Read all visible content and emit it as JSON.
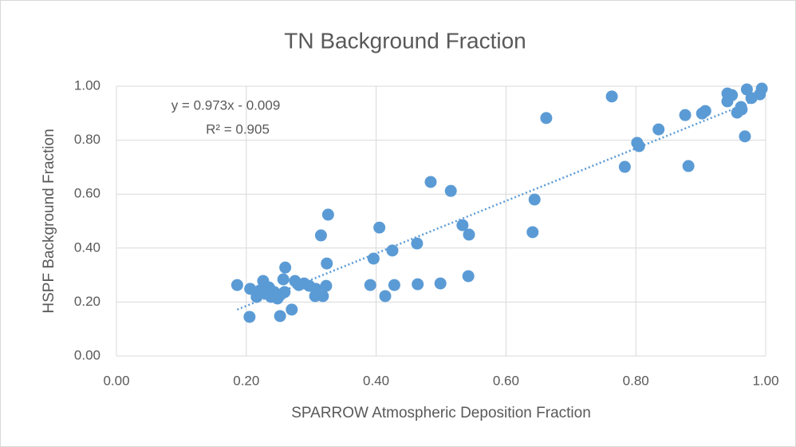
{
  "chart_data": {
    "type": "scatter",
    "title": "TN Background Fraction",
    "x_label": "SPARROW Atmospheric Deposition Fraction",
    "y_label": "HSPF Background Fraction",
    "annotations": [
      "y = 0.973x - 0.009",
      "R² = 0.905"
    ],
    "trendline": {
      "slope": 0.973,
      "intercept": -0.009,
      "style": "dotted"
    },
    "color": "#5b9bd5",
    "grid": true,
    "x": [
      0.186,
      0.205,
      0.206,
      0.216,
      0.221,
      0.226,
      0.23,
      0.235,
      0.238,
      0.243,
      0.248,
      0.252,
      0.253,
      0.257,
      0.259,
      0.26,
      0.27,
      0.275,
      0.281,
      0.289,
      0.297,
      0.306,
      0.307,
      0.315,
      0.318,
      0.323,
      0.324,
      0.326,
      0.391,
      0.396,
      0.405,
      0.414,
      0.425,
      0.428,
      0.463,
      0.464,
      0.484,
      0.499,
      0.515,
      0.533,
      0.542,
      0.543,
      0.641,
      0.644,
      0.662,
      0.763,
      0.783,
      0.802,
      0.805,
      0.835,
      0.876,
      0.881,
      0.902,
      0.907,
      0.941,
      0.941,
      0.948,
      0.956,
      0.962,
      0.963,
      0.968,
      0.971,
      0.978,
      0.991,
      0.994
    ],
    "values": [
      0.263,
      0.145,
      0.249,
      0.219,
      0.243,
      0.278,
      0.231,
      0.254,
      0.219,
      0.237,
      0.213,
      0.148,
      0.228,
      0.284,
      0.237,
      0.328,
      0.172,
      0.278,
      0.263,
      0.269,
      0.26,
      0.222,
      0.249,
      0.447,
      0.222,
      0.26,
      0.343,
      0.524,
      0.263,
      0.361,
      0.476,
      0.222,
      0.391,
      0.263,
      0.417,
      0.266,
      0.645,
      0.269,
      0.612,
      0.485,
      0.296,
      0.45,
      0.459,
      0.58,
      0.882,
      0.962,
      0.701,
      0.79,
      0.778,
      0.84,
      0.893,
      0.704,
      0.899,
      0.908,
      0.973,
      0.944,
      0.967,
      0.902,
      0.923,
      0.914,
      0.814,
      0.988,
      0.956,
      0.97,
      0.991
    ],
    "xlim": [
      0,
      1
    ],
    "ylim": [
      0,
      1
    ],
    "xticks": [
      {
        "value": 0,
        "label": "0.00"
      },
      {
        "value": 0.2,
        "label": "0.20"
      },
      {
        "value": 0.4,
        "label": "0.40"
      },
      {
        "value": 0.6,
        "label": "0.60"
      },
      {
        "value": 0.8,
        "label": "0.80"
      },
      {
        "value": 1,
        "label": "1.00"
      }
    ],
    "yticks": [
      {
        "value": 0,
        "label": "0.00"
      },
      {
        "value": 0.2,
        "label": "0.20"
      },
      {
        "value": 0.4,
        "label": "0.40"
      },
      {
        "value": 0.6,
        "label": "0.60"
      },
      {
        "value": 0.8,
        "label": "0.80"
      },
      {
        "value": 1,
        "label": "1.00"
      }
    ]
  }
}
